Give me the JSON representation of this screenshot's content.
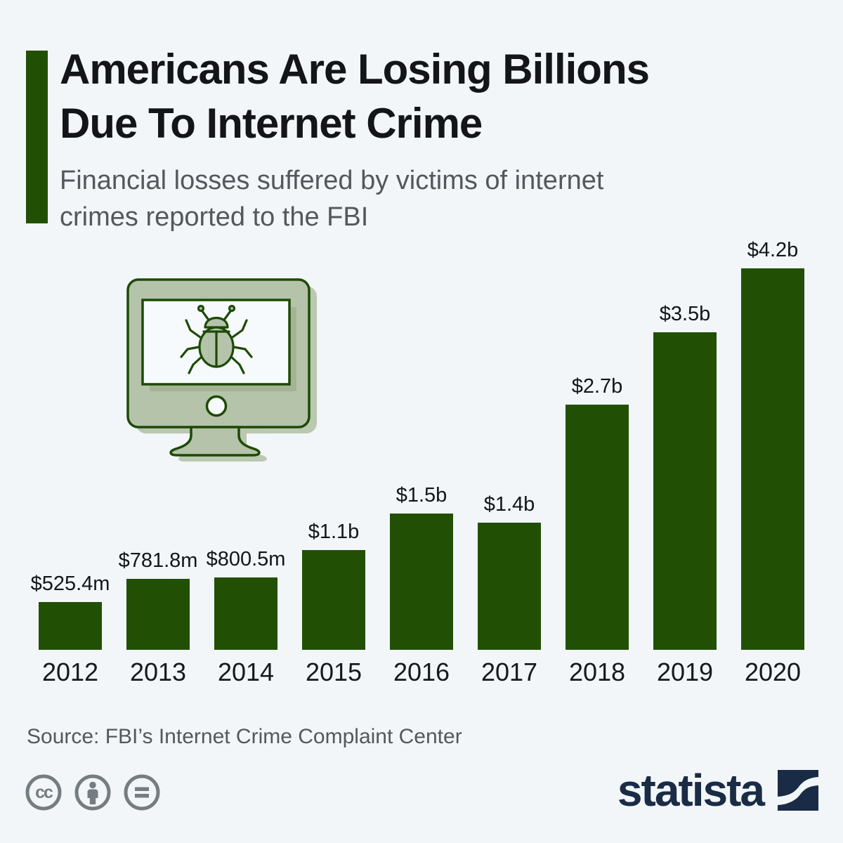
{
  "header": {
    "title": "Americans Are Losing Billions\nDue To Internet Crime",
    "subtitle": "Financial losses suffered by victims of internet\ncrimes reported to the FBI"
  },
  "hero_icon": "computer-monitor-with-bug",
  "chart_data": {
    "type": "bar",
    "title": "Financial losses suffered by victims of internet crimes reported to the FBI",
    "categories": [
      "2012",
      "2013",
      "2014",
      "2015",
      "2016",
      "2017",
      "2018",
      "2019",
      "2020"
    ],
    "values": [
      0.5254,
      0.7818,
      0.8005,
      1.1,
      1.5,
      1.4,
      2.7,
      3.5,
      4.2
    ],
    "value_labels": [
      "$525.4m",
      "$781.8m",
      "$800.5m",
      "$1.1b",
      "$1.5b",
      "$1.4b",
      "$2.7b",
      "$3.5b",
      "$4.2b"
    ],
    "unit": "USD billions",
    "xlabel": "",
    "ylabel": "",
    "ylim": [
      0,
      4.2
    ],
    "grid": false,
    "legend": false,
    "bar_color": "#215004"
  },
  "footer": {
    "source": "Source: FBI’s Internet Crime Complaint Center",
    "license_icons": [
      "cc-icon",
      "attribution-icon",
      "no-derivatives-icon"
    ],
    "brand": "statista"
  },
  "colors": {
    "background": "#f2f6f9",
    "accent_green": "#215004",
    "icon_sage": "#b5c3aa",
    "icon_outline": "#1d4a05",
    "brand_navy": "#1a2b45",
    "muted_gray": "#54585c",
    "cc_gray": "#757d82"
  }
}
